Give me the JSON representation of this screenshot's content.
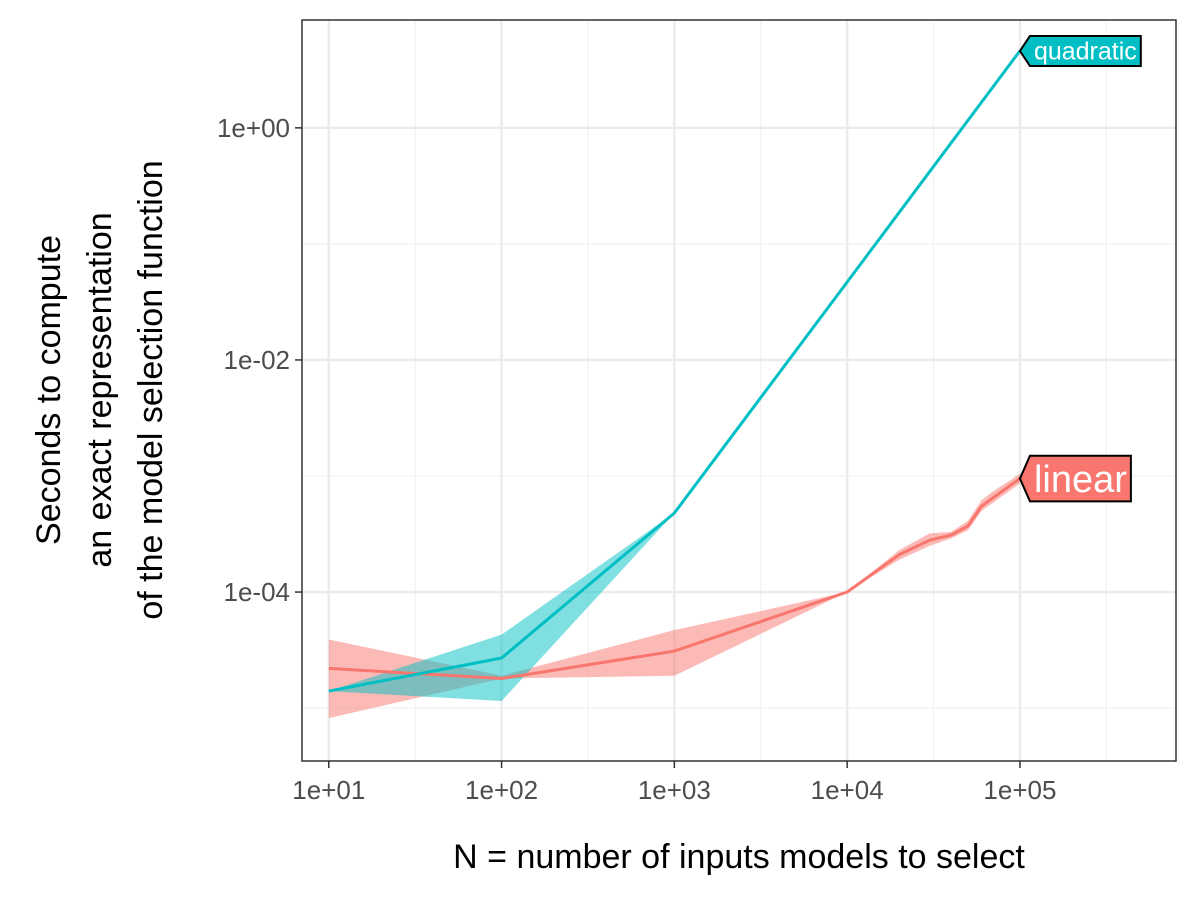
{
  "chart_data": {
    "type": "line",
    "xlabel": "N = number of inputs models to select",
    "ylabel_lines": [
      "Seconds to compute",
      "an exact representation",
      "of the model selection function"
    ],
    "x_scale": "log10",
    "y_scale": "log10",
    "xlim": [
      7,
      800000
    ],
    "ylim": [
      3.5e-06,
      8.5
    ],
    "x_ticks": [
      {
        "value": 10,
        "label": "1e+01"
      },
      {
        "value": 100,
        "label": "1e+02"
      },
      {
        "value": 1000,
        "label": "1e+03"
      },
      {
        "value": 10000,
        "label": "1e+04"
      },
      {
        "value": 100000,
        "label": "1e+05"
      }
    ],
    "y_ticks": [
      {
        "value": 0.0001,
        "label": "1e-04"
      },
      {
        "value": 0.01,
        "label": "1e-02"
      },
      {
        "value": 1,
        "label": "1e+00"
      }
    ],
    "grid": true,
    "legend": "direct-labels",
    "series": [
      {
        "name": "linear",
        "color": "#F8766D",
        "x": [
          10,
          100,
          1000,
          10000,
          20000,
          30000,
          40000,
          50000,
          60000,
          70000,
          80000,
          90000,
          100000
        ],
        "y": [
          2.2e-05,
          1.8e-05,
          3.1e-05,
          0.0001,
          0.00021,
          0.00028,
          0.00031,
          0.00037,
          0.00055,
          0.00065,
          0.00075,
          0.00085,
          0.00095
        ],
        "ymin": [
          8.2e-06,
          1.8e-05,
          1.9e-05,
          0.0001,
          0.00019,
          0.00025,
          0.00029,
          0.00034,
          0.0005,
          0.00059,
          0.00068,
          0.00077,
          0.00086
        ],
        "ymax": [
          3.9e-05,
          1.9e-05,
          4.7e-05,
          0.0001,
          0.00023,
          0.00032,
          0.00033,
          0.00041,
          0.00062,
          0.00074,
          0.00084,
          0.00094,
          0.00105
        ]
      },
      {
        "name": "quadratic",
        "color": "#00BFC4",
        "x": [
          10,
          100,
          1000,
          10000,
          100000
        ],
        "y": [
          1.4e-05,
          2.7e-05,
          0.00048,
          0.047,
          4.6
        ],
        "ymin": [
          1.4e-05,
          1.15e-05,
          0.00048,
          0.047,
          4.6
        ],
        "ymax": [
          1.4e-05,
          4.3e-05,
          0.00048,
          0.047,
          4.6
        ]
      }
    ]
  }
}
